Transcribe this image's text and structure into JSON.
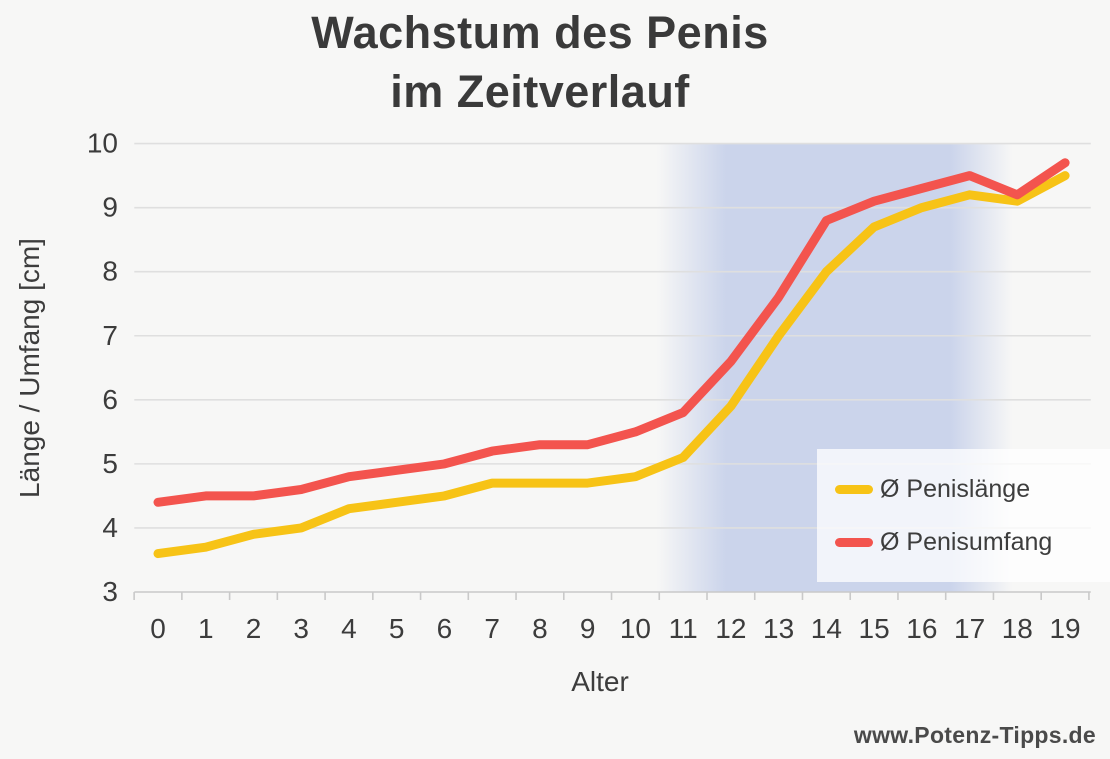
{
  "title": {
    "line1": "Wachstum des Penis",
    "line2": "im Zeitverlauf"
  },
  "watermark": "www.Potenz-Tipps.de",
  "chart_data": {
    "type": "line",
    "title": "Wachstum des Penis im Zeitverlauf",
    "xlabel": "Alter",
    "ylabel": "Länge / Umfang [cm]",
    "x": [
      0,
      1,
      2,
      3,
      4,
      5,
      6,
      7,
      8,
      9,
      10,
      11,
      12,
      13,
      14,
      15,
      16,
      17,
      18,
      19
    ],
    "x_tick_labels": [
      "0",
      "1",
      "2",
      "3",
      "4",
      "5",
      "6",
      "7",
      "8",
      "9",
      "10",
      "11",
      "12",
      "13",
      "14",
      "15",
      "16",
      "17",
      "18",
      "19"
    ],
    "y_ticks": [
      3,
      4,
      5,
      6,
      7,
      8,
      9,
      10
    ],
    "y_tick_labels": [
      "3",
      "4",
      "5",
      "6",
      "7",
      "8",
      "9",
      "10"
    ],
    "ylim": [
      3,
      10
    ],
    "xlim": [
      -0.5,
      19.5
    ],
    "grid": true,
    "legend_position": "bottom-right",
    "series": [
      {
        "name": "Ø Penislänge",
        "color": "#f7c316",
        "values": [
          3.6,
          3.7,
          3.9,
          4.0,
          4.3,
          4.4,
          4.5,
          4.7,
          4.7,
          4.7,
          4.8,
          5.1,
          5.9,
          7.0,
          8.0,
          8.7,
          9.0,
          9.2,
          9.1,
          9.5
        ]
      },
      {
        "name": "Ø Penisumfang",
        "color": "#f3544e",
        "values": [
          4.4,
          4.5,
          4.5,
          4.6,
          4.8,
          4.9,
          5.0,
          5.2,
          5.3,
          5.3,
          5.5,
          5.8,
          6.6,
          7.6,
          8.8,
          9.1,
          9.3,
          9.5,
          9.2,
          9.7
        ]
      }
    ],
    "highlight_band": {
      "color": "#cbd4eb",
      "fade_in_start_age": 10.45,
      "solid_start_age": 11.9,
      "solid_end_age": 16.6,
      "fade_out_end_age": 17.9
    }
  },
  "style_colors": {
    "background": "#f7f7f6",
    "gridline": "#dfdfdf",
    "axis": "#c9c9c9",
    "text": "#3c3c3c"
  }
}
